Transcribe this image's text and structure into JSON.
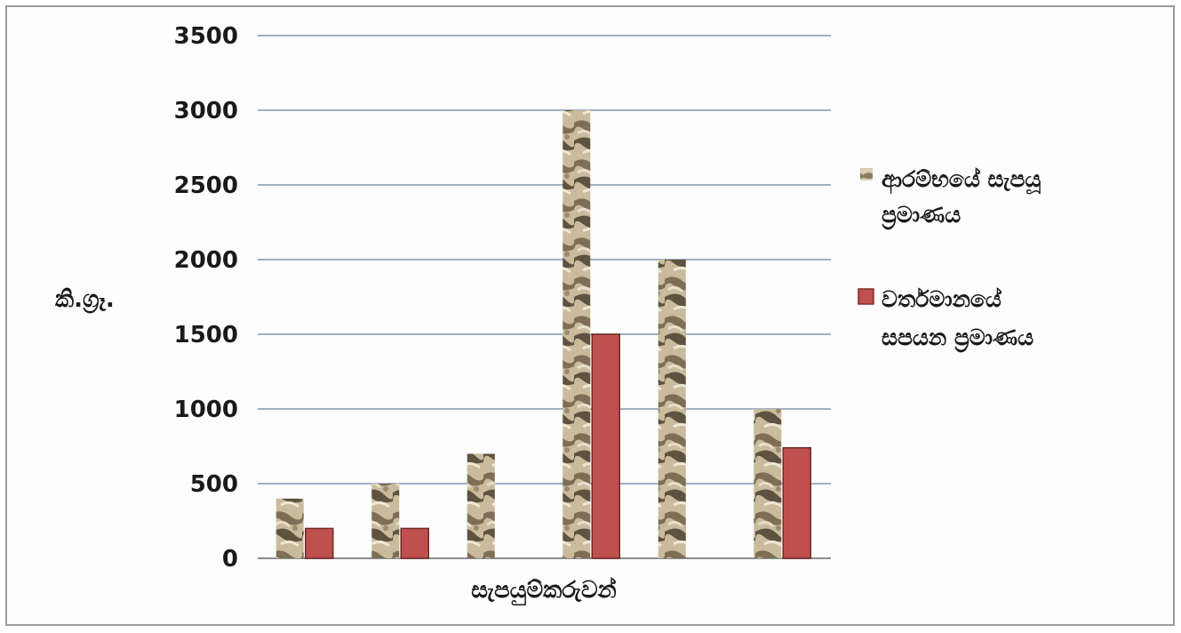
{
  "chart_data": {
    "type": "bar",
    "title": "",
    "xlabel": "සැපයුම්කරුවන්",
    "ylabel": "කි.ග්‍රෑ.",
    "ylim": [
      0,
      3500
    ],
    "yticks": [
      "0",
      "500",
      "1000",
      "1500",
      "2000",
      "2500",
      "3000",
      "3500"
    ],
    "categories": [
      "",
      "",
      "",
      "",
      "",
      ""
    ],
    "grid": true,
    "legend_position": "right",
    "series": [
      {
        "name": "ආරම්භයේ සැපයූ ප්‍රමාණය",
        "name_lines": [
          "ආරම්භයේ සැපයූ",
          "ප්‍රමාණය"
        ],
        "color": "#b9a98a",
        "pattern": "stone-texture",
        "values": [
          400,
          500,
          700,
          3000,
          2000,
          1000
        ]
      },
      {
        "name": "වර්තමානයේ සපයන ප්‍රමාණය",
        "name_lines": [
          "වර්තමානයේ",
          "සපයන ප්‍රමාණය"
        ],
        "color": "#c0504d",
        "pattern": "solid",
        "values": [
          200,
          200,
          null,
          1500,
          null,
          740
        ]
      }
    ]
  }
}
